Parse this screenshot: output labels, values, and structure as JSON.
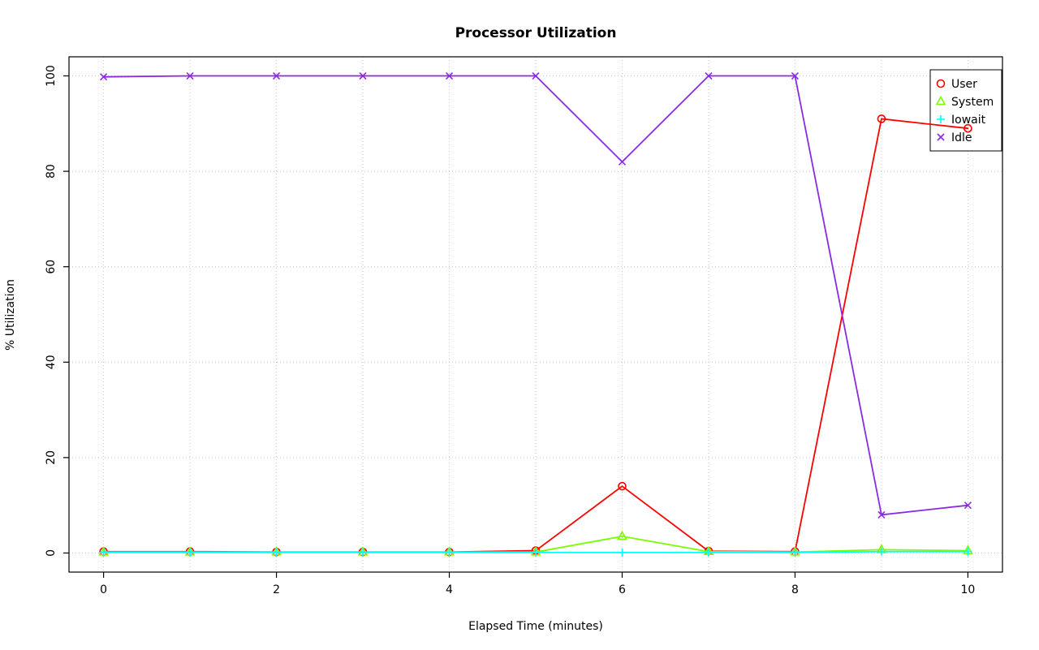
{
  "chart_data": {
    "type": "line",
    "title": "Processor Utilization",
    "xlabel": "Elapsed Time (minutes)",
    "ylabel": "% Utilization",
    "x": [
      0,
      1,
      2,
      3,
      4,
      5,
      6,
      7,
      8,
      9,
      10
    ],
    "xlim": [
      0,
      10
    ],
    "ylim": [
      0,
      100
    ],
    "x_ticks": [
      0,
      2,
      4,
      6,
      8,
      10
    ],
    "y_ticks": [
      0,
      20,
      40,
      60,
      80,
      100
    ],
    "grid": true,
    "grid_x_lines": [
      0,
      1,
      2,
      3,
      4,
      5,
      6,
      7,
      8,
      9,
      10
    ],
    "grid_y_lines": [
      0,
      20,
      40,
      60,
      80,
      100
    ],
    "legend_position": "top-right",
    "series": [
      {
        "name": "User",
        "color": "#ff0000",
        "marker": "circle",
        "values": [
          0.3,
          0.3,
          0.2,
          0.2,
          0.2,
          0.5,
          14,
          0.4,
          0.3,
          91,
          89
        ]
      },
      {
        "name": "System",
        "color": "#7cfc00",
        "marker": "triangle",
        "values": [
          0.2,
          0.2,
          0.2,
          0.2,
          0.2,
          0.2,
          3.5,
          0.3,
          0.2,
          0.7,
          0.5
        ]
      },
      {
        "name": "Iowait",
        "color": "#00ffff",
        "marker": "plus",
        "values": [
          0.1,
          0.1,
          0.1,
          0.1,
          0.1,
          0.1,
          0.1,
          0.1,
          0.1,
          0.3,
          0.3
        ]
      },
      {
        "name": "Idle",
        "color": "#8a2be2",
        "marker": "x",
        "values": [
          99.8,
          100,
          100,
          100,
          100,
          100,
          82,
          100,
          100,
          8,
          10
        ]
      }
    ]
  }
}
